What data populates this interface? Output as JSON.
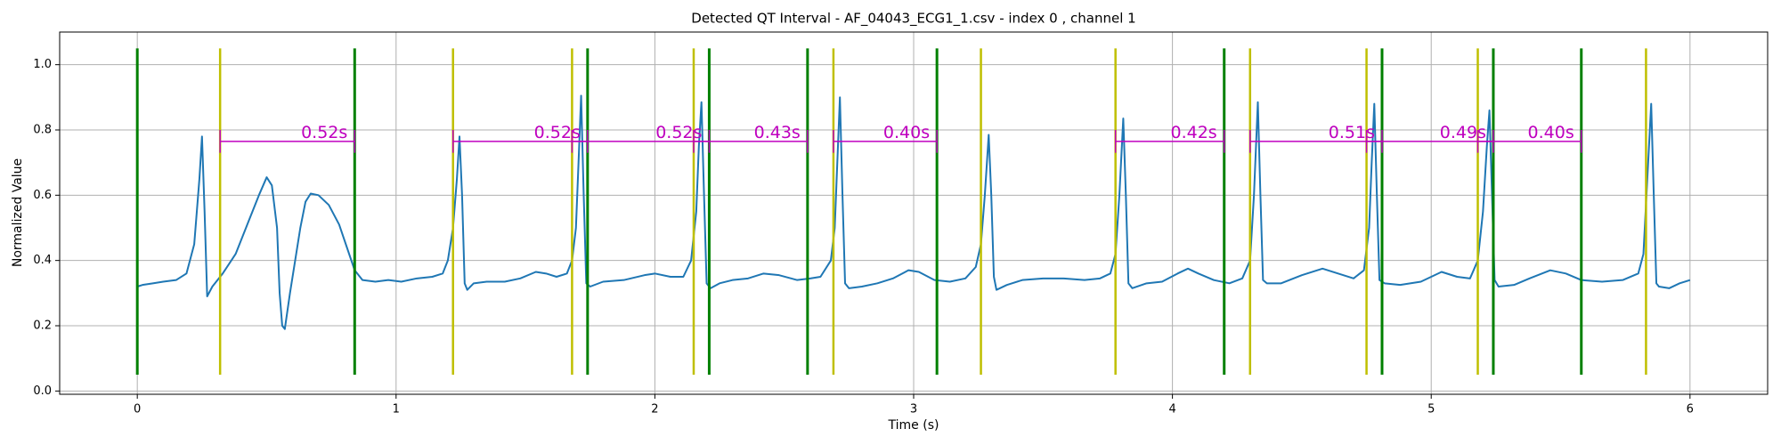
{
  "chart_data": {
    "type": "line",
    "title": "Detected QT Interval - AF_04043_ECG1_1.csv - index 0 , channel 1",
    "x_label": "Time (s)",
    "y_label": "Normalized Value",
    "xlim": [
      -0.3,
      6.3
    ],
    "ylim": [
      -0.01,
      1.1
    ],
    "xticks": [
      0,
      1,
      2,
      3,
      4,
      5,
      6
    ],
    "yticks": [
      {
        "value": 0,
        "label": "0.0"
      },
      0.2,
      0.4,
      0.6,
      0.8,
      {
        "value": 1,
        "label": "1.0"
      }
    ],
    "grid": true,
    "x": [
      0,
      0.02,
      0.06,
      0.1,
      0.15,
      0.19,
      0.22,
      0.24,
      0.25,
      0.26,
      0.27,
      0.29,
      0.33,
      0.38,
      0.43,
      0.47,
      0.5,
      0.52,
      0.54,
      0.55,
      0.56,
      0.57,
      0.59,
      0.61,
      0.63,
      0.65,
      0.67,
      0.7,
      0.74,
      0.78,
      0.81,
      0.84,
      0.87,
      0.92,
      0.97,
      1.02,
      1.08,
      1.14,
      1.18,
      1.2,
      1.22,
      1.235,
      1.245,
      1.255,
      1.265,
      1.275,
      1.3,
      1.35,
      1.42,
      1.48,
      1.54,
      1.58,
      1.62,
      1.66,
      1.68,
      1.695,
      1.705,
      1.715,
      1.725,
      1.735,
      1.75,
      1.8,
      1.88,
      1.96,
      2.0,
      2.06,
      2.11,
      2.14,
      2.16,
      2.17,
      2.18,
      2.19,
      2.2,
      2.215,
      2.25,
      2.3,
      2.36,
      2.42,
      2.48,
      2.55,
      2.6,
      2.64,
      2.68,
      2.695,
      2.705,
      2.715,
      2.725,
      2.735,
      2.75,
      2.8,
      2.86,
      2.92,
      2.98,
      3.02,
      3.08,
      3.14,
      3.2,
      3.24,
      3.26,
      3.275,
      3.29,
      3.3,
      3.31,
      3.32,
      3.36,
      3.42,
      3.5,
      3.58,
      3.66,
      3.72,
      3.76,
      3.78,
      3.795,
      3.81,
      3.82,
      3.83,
      3.845,
      3.9,
      3.96,
      4.02,
      4.06,
      4.1,
      4.16,
      4.22,
      4.27,
      4.3,
      4.315,
      4.33,
      4.34,
      4.35,
      4.365,
      4.42,
      4.5,
      4.58,
      4.64,
      4.7,
      4.74,
      4.76,
      4.77,
      4.78,
      4.79,
      4.8,
      4.82,
      4.88,
      4.96,
      5.04,
      5.1,
      5.15,
      5.18,
      5.2,
      5.215,
      5.225,
      5.235,
      5.245,
      5.26,
      5.32,
      5.38,
      5.46,
      5.52,
      5.58,
      5.66,
      5.74,
      5.8,
      5.82,
      5.835,
      5.85,
      5.86,
      5.87,
      5.88,
      5.92,
      5.96,
      6.0
    ],
    "series": [
      {
        "color": "#1f77b4",
        "values": [
          0.32,
          0.325,
          0.33,
          0.335,
          0.34,
          0.36,
          0.45,
          0.65,
          0.78,
          0.55,
          0.29,
          0.32,
          0.36,
          0.42,
          0.52,
          0.6,
          0.655,
          0.63,
          0.5,
          0.3,
          0.2,
          0.19,
          0.3,
          0.4,
          0.5,
          0.58,
          0.605,
          0.6,
          0.57,
          0.51,
          0.44,
          0.37,
          0.34,
          0.335,
          0.34,
          0.335,
          0.345,
          0.35,
          0.36,
          0.4,
          0.5,
          0.65,
          0.78,
          0.6,
          0.33,
          0.31,
          0.33,
          0.335,
          0.335,
          0.345,
          0.365,
          0.36,
          0.35,
          0.36,
          0.4,
          0.5,
          0.7,
          0.905,
          0.6,
          0.33,
          0.32,
          0.335,
          0.34,
          0.355,
          0.36,
          0.35,
          0.35,
          0.4,
          0.55,
          0.75,
          0.885,
          0.6,
          0.33,
          0.315,
          0.33,
          0.34,
          0.345,
          0.36,
          0.355,
          0.34,
          0.345,
          0.35,
          0.4,
          0.5,
          0.7,
          0.9,
          0.6,
          0.33,
          0.315,
          0.32,
          0.33,
          0.345,
          0.37,
          0.365,
          0.34,
          0.335,
          0.345,
          0.38,
          0.45,
          0.6,
          0.785,
          0.6,
          0.35,
          0.31,
          0.325,
          0.34,
          0.345,
          0.345,
          0.34,
          0.345,
          0.36,
          0.42,
          0.6,
          0.835,
          0.6,
          0.33,
          0.315,
          0.33,
          0.335,
          0.36,
          0.375,
          0.36,
          0.34,
          0.33,
          0.345,
          0.4,
          0.6,
          0.885,
          0.6,
          0.34,
          0.33,
          0.33,
          0.355,
          0.375,
          0.36,
          0.345,
          0.37,
          0.5,
          0.7,
          0.88,
          0.6,
          0.34,
          0.33,
          0.325,
          0.335,
          0.365,
          0.35,
          0.345,
          0.4,
          0.55,
          0.75,
          0.86,
          0.6,
          0.34,
          0.32,
          0.325,
          0.345,
          0.37,
          0.36,
          0.34,
          0.335,
          0.34,
          0.36,
          0.42,
          0.65,
          0.88,
          0.6,
          0.33,
          0.32,
          0.315,
          0.33,
          0.34
        ]
      }
    ],
    "marker_span": [
      0.05,
      1.05
    ],
    "onsets": {
      "color": "#bfbf00",
      "x": [
        0.32,
        1.22,
        1.68,
        2.15,
        2.69,
        3.26,
        3.78,
        4.3,
        4.75,
        5.18,
        5.83
      ]
    },
    "offsets": {
      "color": "#008000",
      "x": [
        0,
        0.84,
        1.74,
        2.21,
        2.59,
        3.09,
        4.2,
        4.81,
        5.24,
        5.58
      ]
    },
    "intervals": {
      "color": "#bf00bf",
      "level": 0.765,
      "tick_span": [
        0.73,
        0.8
      ],
      "items": [
        {
          "start": 0.32,
          "end": 0.84,
          "label": "0.52s"
        },
        {
          "start": 1.22,
          "end": 1.74,
          "label": "0.52s"
        },
        {
          "start": 1.68,
          "end": 2.21,
          "label": "0.52s"
        },
        {
          "start": 2.15,
          "end": 2.59,
          "label": "0.43s"
        },
        {
          "start": 2.69,
          "end": 3.09,
          "label": "0.40s"
        },
        {
          "start": 3.78,
          "end": 4.2,
          "label": "0.42s"
        },
        {
          "start": 4.3,
          "end": 4.81,
          "label": "0.51s"
        },
        {
          "start": 4.75,
          "end": 5.24,
          "label": "0.49s"
        },
        {
          "start": 5.18,
          "end": 5.58,
          "label": "0.40s"
        }
      ]
    }
  }
}
